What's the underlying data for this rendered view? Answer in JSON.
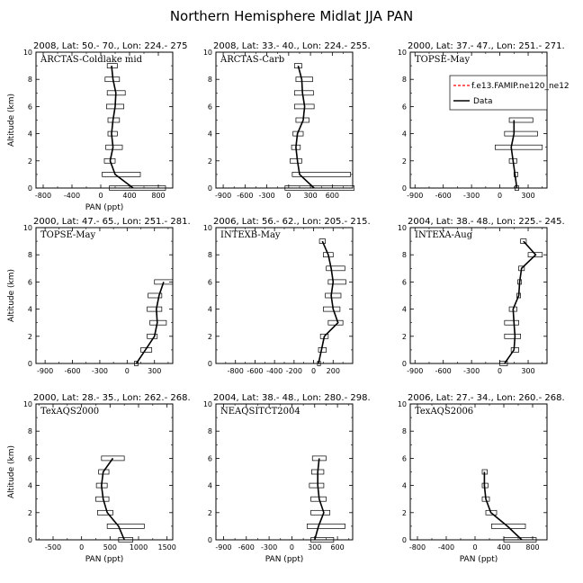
{
  "title": "Northern Hemisphere Midlat JJA PAN",
  "colors": {
    "data": "#000000",
    "model": "#ff0000",
    "box": "#000000"
  },
  "legend": {
    "model": "f.e13.FAMIP.ne120_ne12",
    "data": "Data",
    "panel": 2
  },
  "chart_data": [
    {
      "type": "line",
      "header": "2008, Lat:  50.- 70., Lon: 224.- 275",
      "label": "ARCTAS-Coldlake mid",
      "xlim": [
        -900,
        1000
      ],
      "xticks": [
        -800,
        -400,
        0,
        400,
        800
      ],
      "ylim": [
        0,
        10
      ],
      "yticks": [
        0,
        2,
        4,
        6,
        8,
        10
      ],
      "xlabel": "PAN (ppt)",
      "ylabel": "Altitude (km)",
      "altitude": [
        0,
        1,
        2,
        3,
        4,
        5,
        6,
        7,
        8,
        9
      ],
      "data": [
        450,
        200,
        130,
        170,
        150,
        170,
        200,
        210,
        170,
        150
      ],
      "box_low": [
        120,
        20,
        50,
        70,
        100,
        100,
        80,
        90,
        60,
        90
      ],
      "box_high": [
        900,
        550,
        200,
        300,
        230,
        260,
        320,
        340,
        260,
        230
      ]
    },
    {
      "type": "line",
      "header": "2008, Lat:  33.- 40., Lon: 224.- 255.",
      "label": "ARCTAS-Carb",
      "xlim": [
        -1000,
        880
      ],
      "xticks": [
        -900,
        -600,
        -300,
        0,
        300,
        600
      ],
      "ylim": [
        0,
        10
      ],
      "yticks": [
        0,
        2,
        4,
        6,
        8,
        10
      ],
      "xlabel": "",
      "ylabel": "",
      "altitude": [
        0,
        1,
        2,
        3,
        4,
        5,
        6,
        7,
        8,
        9
      ],
      "data": [
        350,
        150,
        120,
        100,
        120,
        200,
        220,
        190,
        180,
        130
      ],
      "box_low": [
        -50,
        50,
        20,
        40,
        60,
        100,
        80,
        80,
        100,
        80
      ],
      "box_high": [
        900,
        850,
        180,
        160,
        200,
        280,
        350,
        340,
        330,
        180
      ]
    },
    {
      "type": "line",
      "header": "2000, Lat: 37.- 47., Lon: 251.- 271.",
      "label": "TOPSE-May",
      "xlim": [
        -950,
        500
      ],
      "xticks": [
        -900,
        -600,
        -300,
        0,
        300
      ],
      "ylim": [
        0,
        10
      ],
      "yticks": [
        0,
        2,
        4,
        6,
        8,
        10
      ],
      "xlabel": "",
      "ylabel": "",
      "altitude": [
        0,
        1,
        2,
        3,
        4,
        5
      ],
      "data": [
        180,
        160,
        140,
        120,
        150,
        150
      ],
      "box_low": [
        160,
        150,
        100,
        -50,
        50,
        100
      ],
      "box_high": [
        200,
        190,
        180,
        450,
        400,
        350
      ]
    },
    {
      "type": "line",
      "header": "2000, Lat: 47.- 65., Lon: 251.- 281.",
      "label": "TOPSE-May",
      "xlim": [
        -1000,
        500
      ],
      "xticks": [
        -900,
        -600,
        -300,
        0,
        300
      ],
      "ylim": [
        0,
        10
      ],
      "yticks": [
        0,
        2,
        4,
        6,
        8,
        10
      ],
      "xlabel": "",
      "ylabel": "Altitude (km)",
      "altitude": [
        0,
        1,
        2,
        3,
        4,
        5,
        6
      ],
      "data": [
        100,
        200,
        300,
        330,
        320,
        350,
        400
      ],
      "box_low": [
        80,
        150,
        220,
        250,
        220,
        230,
        300
      ],
      "box_high": [
        120,
        270,
        330,
        430,
        380,
        380,
        500
      ]
    },
    {
      "type": "line",
      "header": "2006, Lat: 56.- 62., Lon: 205.- 215.",
      "label": "INTEXB-May",
      "xlim": [
        -1000,
        400
      ],
      "xticks": [
        -800,
        -600,
        -400,
        -200,
        0,
        200
      ],
      "ylim": [
        0,
        10
      ],
      "yticks": [
        0,
        2,
        4,
        6,
        8,
        10
      ],
      "xlabel": "",
      "ylabel": "",
      "altitude": [
        0,
        1,
        2,
        3,
        4,
        5,
        6,
        7,
        8,
        9
      ],
      "data": [
        50,
        80,
        110,
        250,
        200,
        180,
        200,
        180,
        150,
        90
      ],
      "box_low": [
        40,
        50,
        70,
        150,
        100,
        120,
        150,
        130,
        100,
        60
      ],
      "box_high": [
        70,
        130,
        150,
        300,
        270,
        280,
        330,
        320,
        200,
        120
      ]
    },
    {
      "type": "line",
      "header": "2004, Lat: 38.- 48., Lon: 225.- 245.",
      "label": "INTEXA-Aug",
      "xlim": [
        -950,
        500
      ],
      "xticks": [
        -900,
        -600,
        -300,
        0,
        300
      ],
      "ylim": [
        0,
        10
      ],
      "yticks": [
        0,
        2,
        4,
        6,
        8,
        10
      ],
      "xlabel": "",
      "ylabel": "",
      "altitude": [
        0,
        1,
        2,
        3,
        4,
        5,
        6,
        7,
        8,
        9
      ],
      "data": [
        50,
        150,
        160,
        150,
        140,
        200,
        210,
        230,
        380,
        250
      ],
      "box_low": [
        0,
        120,
        50,
        50,
        100,
        180,
        190,
        200,
        300,
        220
      ],
      "box_high": [
        80,
        200,
        220,
        200,
        180,
        220,
        230,
        260,
        450,
        280
      ]
    },
    {
      "type": "line",
      "header": "2000, Lat: 28.- 35., Lon: 262.- 268.",
      "label": "TexAQS2000",
      "xlim": [
        -800,
        1600
      ],
      "xticks": [
        -500,
        0,
        500,
        1000,
        1500
      ],
      "ylim": [
        0,
        10
      ],
      "yticks": [
        0,
        2,
        4,
        6,
        8,
        10
      ],
      "xlabel": "PAN (ppt)",
      "ylabel": "Altitude (km)",
      "altitude": [
        0,
        1,
        2,
        3,
        4,
        5,
        6
      ],
      "data": [
        750,
        650,
        450,
        380,
        350,
        380,
        550
      ],
      "box_low": [
        650,
        450,
        280,
        250,
        260,
        300,
        350
      ],
      "box_high": [
        900,
        1100,
        550,
        480,
        450,
        480,
        750
      ]
    },
    {
      "type": "line",
      "header": "2004, Lat: 38.- 48., Lon: 280.- 298.",
      "label": "NEAQSITCT2004",
      "xlim": [
        -1000,
        800
      ],
      "xticks": [
        -900,
        -600,
        -300,
        0,
        300,
        600
      ],
      "ylim": [
        0,
        10
      ],
      "yticks": [
        0,
        2,
        4,
        6,
        8,
        10
      ],
      "xlabel": "PAN (ppt)",
      "ylabel": "",
      "altitude": [
        0,
        1,
        2,
        3,
        4,
        5,
        6
      ],
      "data": [
        300,
        350,
        420,
        360,
        340,
        340,
        360
      ],
      "box_low": [
        250,
        200,
        250,
        250,
        230,
        260,
        270
      ],
      "box_high": [
        550,
        700,
        500,
        450,
        420,
        420,
        450
      ]
    },
    {
      "type": "line",
      "header": "2006, Lat: 27.- 34., Lon: 260.- 268.",
      "label": "TexAQS2006",
      "xlim": [
        -900,
        1000
      ],
      "xticks": [
        -800,
        -400,
        0,
        400,
        800
      ],
      "ylim": [
        0,
        10
      ],
      "yticks": [
        0,
        2,
        4,
        6,
        8,
        10
      ],
      "xlabel": "PAN (ppt)",
      "ylabel": "",
      "altitude": [
        0,
        1,
        2,
        3,
        4,
        5
      ],
      "data": [
        650,
        450,
        220,
        150,
        130,
        130
      ],
      "box_low": [
        400,
        230,
        150,
        100,
        100,
        100
      ],
      "box_high": [
        850,
        700,
        300,
        200,
        180,
        170
      ]
    }
  ]
}
